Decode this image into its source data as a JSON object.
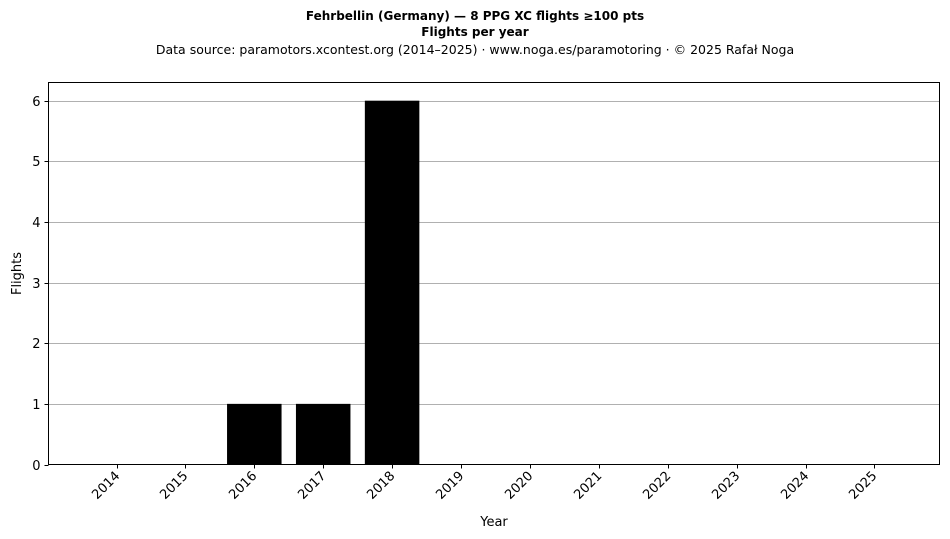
{
  "header": {
    "title": "Fehrbellin (Germany)  —  8 PPG XC flights ≥100 pts",
    "subtitle": "Flights per year",
    "source": "Data source: paramotors.xcontest.org (2014–2025)  ·  www.noga.es/paramotoring  ·  © 2025 Rafał Noga"
  },
  "colors": {
    "bar": "#000000",
    "grid": "#b0b0b0",
    "axis": "#000000"
  },
  "chart_data": {
    "type": "bar",
    "title": "Fehrbellin (Germany)  —  8 PPG XC flights ≥100 pts",
    "subtitle": "Flights per year",
    "xlabel": "Year",
    "ylabel": "Flights",
    "categories": [
      "2014",
      "2015",
      "2016",
      "2017",
      "2018",
      "2019",
      "2020",
      "2021",
      "2022",
      "2023",
      "2024",
      "2025"
    ],
    "values": [
      0,
      0,
      1,
      1,
      6,
      0,
      0,
      0,
      0,
      0,
      0,
      0
    ],
    "ylim": [
      0,
      6.3
    ],
    "yticks": [
      0,
      1,
      2,
      3,
      4,
      5,
      6
    ],
    "grid": "y",
    "legend": "none"
  }
}
